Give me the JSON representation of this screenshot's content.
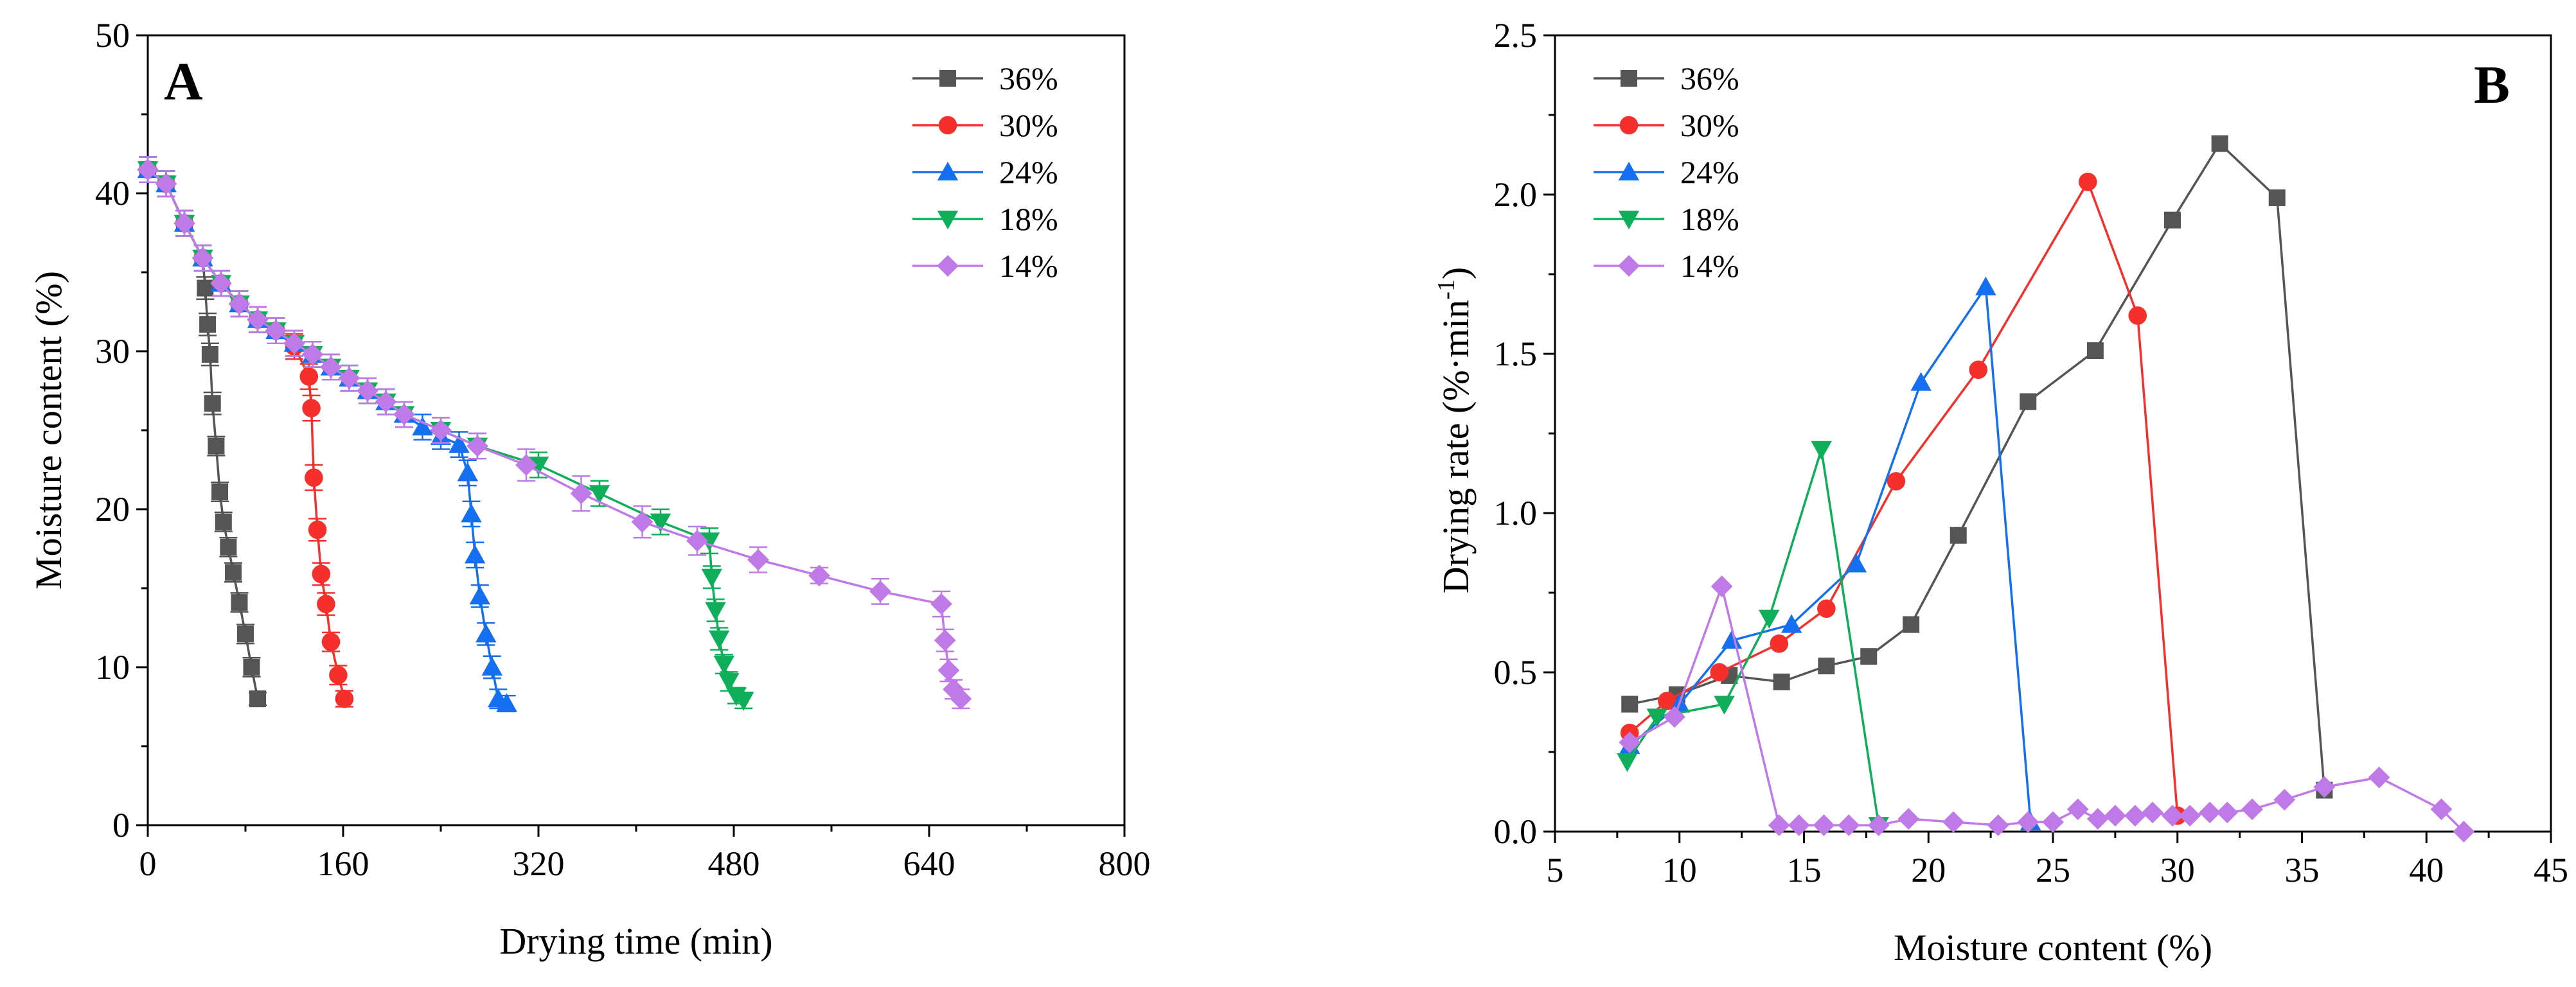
{
  "colors": {
    "s36": "#555555",
    "s30": "#f5302c",
    "s24": "#1470f0",
    "s18": "#0fae5a",
    "s14": "#c07ae8"
  },
  "chart_data": [
    {
      "type": "line",
      "panel_label": "A",
      "title": "",
      "xlabel": "Drying time (min)",
      "ylabel": "Moisture content (%)",
      "xlim": [
        0,
        800
      ],
      "ylim": [
        0,
        50
      ],
      "xticks": [
        "0",
        "160",
        "320",
        "480",
        "640",
        "800"
      ],
      "yticks": [
        "0",
        "10",
        "20",
        "30",
        "40",
        "50"
      ],
      "legend_position": "top-right",
      "error_bars": true,
      "series": [
        {
          "name": "36%",
          "color_key": "s36",
          "marker": "square",
          "x": [
            0,
            15,
            30,
            45,
            47,
            49,
            51,
            53,
            56,
            59,
            62,
            66,
            70,
            75,
            80,
            85,
            90
          ],
          "y": [
            41.5,
            40.6,
            38.1,
            35.9,
            34.0,
            31.7,
            29.8,
            26.7,
            24.0,
            21.1,
            19.2,
            17.6,
            16.0,
            14.1,
            12.1,
            10.0,
            8.0
          ],
          "err": [
            0.8,
            0.8,
            0.8,
            0.8,
            0.7,
            0.7,
            0.7,
            0.7,
            0.6,
            0.6,
            0.6,
            0.6,
            0.6,
            0.6,
            0.6,
            0.6,
            0.4
          ]
        },
        {
          "name": "30%",
          "color_key": "s30",
          "marker": "circle",
          "x": [
            0,
            15,
            30,
            45,
            60,
            75,
            90,
            105,
            120,
            132,
            134,
            136,
            139,
            142,
            146,
            150,
            156,
            161
          ],
          "y": [
            41.5,
            40.6,
            38.1,
            35.9,
            34.3,
            33.0,
            32.0,
            31.3,
            30.3,
            28.4,
            26.4,
            22.0,
            18.7,
            15.9,
            14.0,
            11.6,
            9.5,
            8.0
          ],
          "err": [
            0.8,
            0.8,
            0.8,
            0.8,
            0.8,
            0.8,
            0.8,
            0.8,
            0.8,
            0.8,
            0.8,
            0.8,
            0.7,
            0.7,
            0.7,
            0.6,
            0.6,
            0.5
          ]
        },
        {
          "name": "24%",
          "color_key": "s24",
          "marker": "triangle-up",
          "x": [
            0,
            15,
            30,
            45,
            60,
            75,
            90,
            105,
            120,
            135,
            150,
            165,
            180,
            195,
            210,
            225,
            240,
            255,
            262,
            265,
            268,
            272,
            277,
            282,
            287,
            294
          ],
          "y": [
            41.5,
            40.6,
            38.1,
            35.9,
            34.3,
            33.0,
            32.0,
            31.3,
            30.5,
            29.8,
            29.0,
            28.3,
            27.5,
            26.8,
            26.0,
            25.2,
            24.6,
            24.1,
            22.3,
            19.7,
            17.1,
            14.5,
            12.1,
            10.0,
            8.0,
            7.7
          ],
          "err": [
            0.8,
            0.8,
            0.8,
            0.8,
            0.8,
            0.8,
            0.8,
            0.8,
            0.8,
            0.8,
            0.8,
            0.8,
            0.8,
            0.8,
            0.8,
            0.8,
            0.8,
            0.8,
            0.8,
            0.8,
            0.8,
            0.7,
            0.7,
            0.7,
            0.6,
            0.5
          ]
        },
        {
          "name": "18%",
          "color_key": "s18",
          "marker": "triangle-down",
          "x": [
            0,
            15,
            30,
            45,
            60,
            75,
            90,
            105,
            120,
            135,
            150,
            165,
            180,
            195,
            210,
            240,
            270,
            320,
            370,
            420,
            460,
            462,
            465,
            468,
            472,
            476,
            482,
            488
          ],
          "y": [
            41.5,
            40.6,
            38.1,
            35.9,
            34.3,
            33.0,
            32.0,
            31.3,
            30.5,
            29.8,
            29.0,
            28.3,
            27.5,
            26.8,
            26.0,
            25.0,
            24.0,
            22.8,
            21.0,
            19.2,
            18.0,
            15.7,
            13.6,
            11.8,
            10.2,
            9.1,
            8.2,
            7.9
          ],
          "err": [
            0.8,
            0.8,
            0.8,
            0.8,
            0.8,
            0.8,
            0.8,
            0.8,
            0.8,
            0.8,
            0.8,
            0.8,
            0.8,
            0.8,
            0.8,
            0.8,
            0.8,
            0.8,
            0.8,
            0.8,
            0.8,
            0.7,
            0.7,
            0.7,
            0.6,
            0.6,
            0.5,
            0.5
          ]
        },
        {
          "name": "14%",
          "color_key": "s14",
          "marker": "diamond",
          "x": [
            0,
            15,
            30,
            45,
            60,
            75,
            90,
            105,
            120,
            135,
            150,
            165,
            180,
            195,
            210,
            240,
            270,
            310,
            355,
            405,
            450,
            500,
            550,
            600,
            650,
            653,
            656,
            660,
            666
          ],
          "y": [
            41.5,
            40.6,
            38.1,
            35.9,
            34.3,
            33.0,
            32.0,
            31.3,
            30.5,
            29.8,
            29.0,
            28.3,
            27.5,
            26.8,
            26.0,
            25.0,
            24.0,
            22.8,
            21.0,
            19.2,
            18.0,
            16.8,
            15.8,
            14.8,
            14.0,
            11.7,
            9.8,
            8.6,
            8.0
          ],
          "err": [
            0.8,
            0.8,
            0.8,
            0.8,
            0.8,
            0.8,
            0.8,
            0.8,
            0.8,
            0.8,
            0.8,
            0.8,
            0.8,
            0.8,
            0.8,
            0.8,
            0.8,
            1.0,
            1.1,
            1.0,
            0.9,
            0.8,
            0.5,
            0.8,
            0.8,
            0.7,
            0.7,
            0.6,
            0.6
          ]
        }
      ]
    },
    {
      "type": "line",
      "panel_label": "B",
      "title": "",
      "xlabel": "Moisture content (%)",
      "ylabel": "Drying rate (%·min",
      "ylabel_sup": "-1",
      "ylabel_close": ")",
      "xlim": [
        5,
        45
      ],
      "ylim": [
        0,
        2.5
      ],
      "xticks": [
        "5",
        "10",
        "15",
        "20",
        "25",
        "30",
        "35",
        "40",
        "45"
      ],
      "yticks": [
        "0.0",
        "0.5",
        "1.0",
        "1.5",
        "2.0",
        "2.5"
      ],
      "legend_position": "top-left",
      "error_bars": false,
      "series": [
        {
          "name": "36%",
          "color_key": "s36",
          "marker": "square",
          "x": [
            8.0,
            9.9,
            12.0,
            14.1,
            15.9,
            17.6,
            19.3,
            21.2,
            24.0,
            26.7,
            29.8,
            31.7,
            34.0,
            35.9
          ],
          "y": [
            0.4,
            0.43,
            0.49,
            0.47,
            0.52,
            0.55,
            0.65,
            0.93,
            1.35,
            1.51,
            1.92,
            2.16,
            1.99,
            0.13
          ]
        },
        {
          "name": "30%",
          "color_key": "s30",
          "marker": "circle",
          "x": [
            8.0,
            9.5,
            11.6,
            14.0,
            15.9,
            18.7,
            22.0,
            26.4,
            28.4,
            30.0
          ],
          "y": [
            0.31,
            0.41,
            0.5,
            0.59,
            0.7,
            1.1,
            1.45,
            2.04,
            1.62,
            0.05
          ]
        },
        {
          "name": "24%",
          "color_key": "s24",
          "marker": "triangle-up",
          "x": [
            8.0,
            10.0,
            12.1,
            14.5,
            17.1,
            19.7,
            22.3,
            24.1
          ],
          "y": [
            0.27,
            0.4,
            0.6,
            0.65,
            0.84,
            1.41,
            1.71,
            0.03
          ]
        },
        {
          "name": "18%",
          "color_key": "s18",
          "marker": "triangle-down",
          "x": [
            7.9,
            9.1,
            11.8,
            13.6,
            15.7,
            18.0
          ],
          "y": [
            0.22,
            0.36,
            0.4,
            0.67,
            1.2,
            0.02
          ]
        },
        {
          "name": "14%",
          "color_key": "s14",
          "marker": "diamond",
          "x": [
            8.0,
            9.8,
            11.7,
            14.0,
            14.8,
            15.8,
            16.8,
            18.0,
            19.2,
            21.0,
            22.8,
            24.0,
            25.0,
            26.0,
            26.8,
            27.5,
            28.3,
            29.0,
            29.8,
            30.5,
            31.3,
            32.0,
            33.0,
            34.3,
            35.9,
            38.1,
            40.6,
            41.5
          ],
          "y": [
            0.28,
            0.36,
            0.77,
            0.02,
            0.02,
            0.02,
            0.02,
            0.02,
            0.04,
            0.03,
            0.02,
            0.03,
            0.03,
            0.07,
            0.04,
            0.05,
            0.05,
            0.06,
            0.05,
            0.05,
            0.06,
            0.06,
            0.07,
            0.1,
            0.14,
            0.17,
            0.07,
            0.0
          ]
        }
      ]
    }
  ]
}
